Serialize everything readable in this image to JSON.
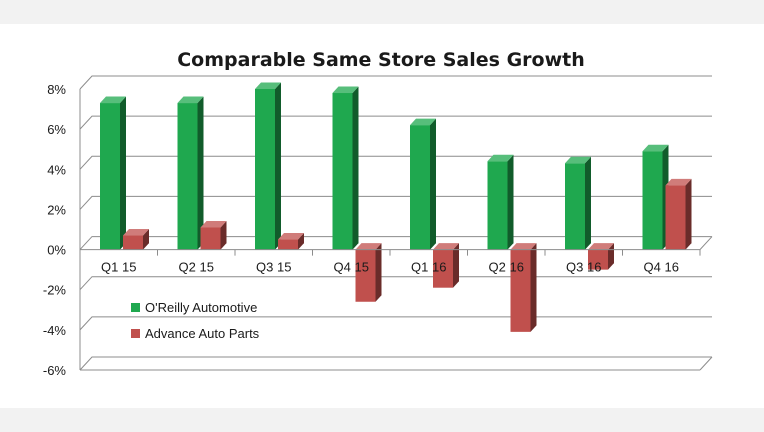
{
  "chart_data": {
    "type": "bar",
    "title": "Comparable Same Store Sales Growth",
    "categories": [
      "Q1 15",
      "Q2 15",
      "Q3 15",
      "Q4 15",
      "Q1 16",
      "Q2 16",
      "Q3 16",
      "Q4 16"
    ],
    "series": [
      {
        "name": "O'Reilly Automotive",
        "values": [
          7.3,
          7.3,
          8.0,
          7.8,
          6.2,
          4.4,
          4.3,
          4.9
        ],
        "color": "#1fa84f"
      },
      {
        "name": "Advance Auto Parts",
        "values": [
          0.7,
          1.1,
          0.5,
          -2.6,
          -1.9,
          -4.1,
          -1.0,
          3.2
        ],
        "color": "#c0504d"
      }
    ],
    "yticks": [
      "8%",
      "6%",
      "4%",
      "2%",
      "0%",
      "-2%",
      "-4%",
      "-6%"
    ],
    "ylim": [
      -6,
      8
    ],
    "grid": true,
    "legend": "lower-left"
  }
}
